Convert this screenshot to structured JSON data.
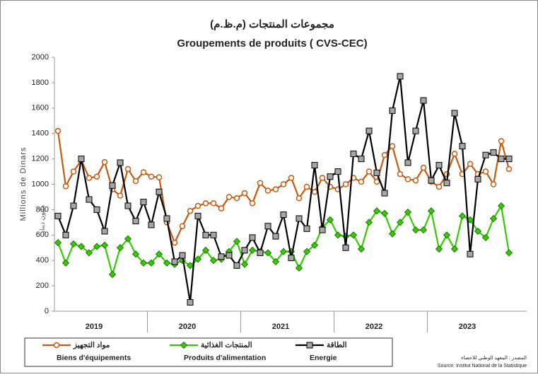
{
  "chart_data": {
    "type": "line",
    "title_ar": "مجموعات المنتجات (م.ظ.م)",
    "title": "Groupements de produits ( CVS-CEC)",
    "y_label": "Millions de Dinars",
    "y_label_ar": "مليون دينار",
    "source_ar": "المصدر : المعهد الوطني للاحصاء",
    "source": "Source: Institut National de la Statistique",
    "categories": [
      null,
      null,
      null,
      null,
      null,
      "2019",
      null,
      null,
      null,
      null,
      null,
      null,
      null,
      null,
      null,
      null,
      null,
      "2020",
      null,
      null,
      null,
      null,
      null,
      null,
      null,
      null,
      null,
      null,
      null,
      "2021",
      null,
      null,
      null,
      null,
      null,
      null,
      null,
      null,
      null,
      null,
      null,
      "2022",
      null,
      null,
      null,
      null,
      null,
      null,
      null,
      null,
      null,
      null,
      null,
      "2023",
      null,
      null,
      null,
      null,
      null
    ],
    "ylim": [
      0,
      2000
    ],
    "yticks": [
      0,
      200,
      400,
      600,
      800,
      1000,
      1200,
      1400,
      1600,
      1800,
      2000
    ],
    "grid": false,
    "series": [
      {
        "name": "Biens d'équipements",
        "name_ar": "مواد التجهيز",
        "color": "#c55a11",
        "marker": "circle",
        "values": [
          1420,
          985,
          1100,
          1190,
          1050,
          1060,
          1175,
          960,
          910,
          1120,
          1025,
          1095,
          1060,
          1055,
          700,
          540,
          670,
          790,
          830,
          850,
          850,
          810,
          900,
          890,
          930,
          850,
          1010,
          950,
          960,
          1000,
          1050,
          890,
          980,
          940,
          1050,
          980,
          960,
          1000,
          1050,
          1020,
          1100,
          1020,
          1230,
          1300,
          1080,
          1040,
          1030,
          1130,
          1020,
          980,
          1080,
          1240,
          1080,
          1160,
          1080,
          1100,
          1000,
          1340,
          1120
        ]
      },
      {
        "name": "Produits d'alimentation",
        "name_ar": "المنتجات الغذائية",
        "color": "#33cc00",
        "marker": "diamond",
        "values": [
          540,
          380,
          530,
          510,
          460,
          510,
          520,
          290,
          500,
          570,
          450,
          380,
          380,
          450,
          380,
          370,
          400,
          360,
          410,
          480,
          400,
          410,
          470,
          550,
          370,
          480,
          470,
          460,
          390,
          470,
          470,
          340,
          470,
          520,
          660,
          720,
          600,
          590,
          600,
          490,
          700,
          790,
          770,
          610,
          700,
          780,
          640,
          640,
          790,
          490,
          600,
          490,
          750,
          720,
          630,
          580,
          730,
          830,
          460
        ]
      },
      {
        "name": "Energie",
        "name_ar": "الطاقة",
        "color": "#000000",
        "marker": "square",
        "values": [
          750,
          600,
          830,
          1200,
          880,
          800,
          630,
          990,
          1170,
          830,
          710,
          860,
          680,
          940,
          730,
          390,
          440,
          70,
          750,
          600,
          600,
          430,
          440,
          360,
          480,
          580,
          460,
          670,
          590,
          760,
          420,
          730,
          650,
          1150,
          640,
          1060,
          1100,
          500,
          1240,
          1200,
          1420,
          1090,
          930,
          1580,
          1850,
          1170,
          1420,
          1660,
          1030,
          1150,
          1010,
          1560,
          1300,
          450,
          1040,
          1230,
          1250,
          1200,
          1200
        ]
      }
    ]
  }
}
